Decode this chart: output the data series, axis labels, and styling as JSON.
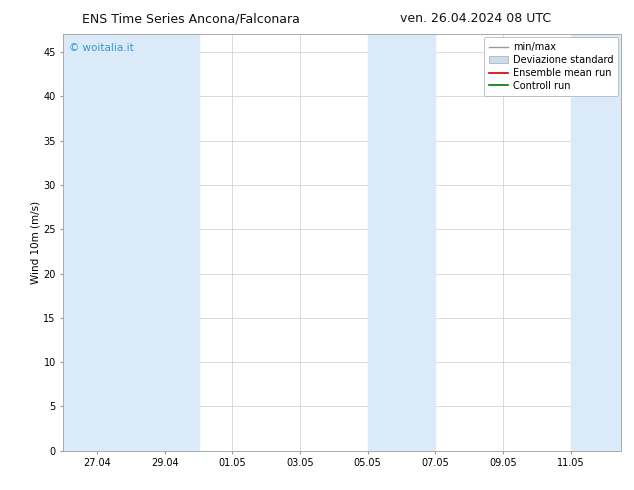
{
  "title_left": "ENS Time Series Ancona/Falconara",
  "title_right": "ven. 26.04.2024 08 UTC",
  "ylabel": "Wind 10m (m/s)",
  "watermark": "© woitalia.it",
  "watermark_color": "#3399cc",
  "ylim": [
    0,
    47
  ],
  "yticks": [
    0,
    5,
    10,
    15,
    20,
    25,
    30,
    35,
    40,
    45
  ],
  "bg_color": "#ffffff",
  "plot_bg_color": "#ffffff",
  "shaded_color": "#daeaf8",
  "tick_labels": [
    "27.04",
    "29.04",
    "01.05",
    "03.05",
    "05.05",
    "07.05",
    "09.05",
    "11.05"
  ],
  "legend_labels": [
    "min/max",
    "Deviazione standard",
    "Ensemble mean run",
    "Controll run"
  ],
  "legend_colors_line": [
    "#999999",
    "#cc0000",
    "#007700"
  ],
  "legend_patch_color": "#c8ddf0",
  "title_fontsize": 9,
  "axis_fontsize": 7.5,
  "tick_fontsize": 7,
  "legend_fontsize": 7,
  "watermark_fontsize": 7.5,
  "xlim": [
    0.0,
    16.5
  ],
  "tick_positions": [
    1.0,
    3.0,
    5.0,
    7.0,
    9.0,
    11.0,
    13.0,
    15.0
  ],
  "shaded_regions": [
    [
      0.0,
      2.0
    ],
    [
      2.0,
      4.0
    ],
    [
      9.0,
      11.0
    ],
    [
      15.0,
      16.5
    ]
  ]
}
